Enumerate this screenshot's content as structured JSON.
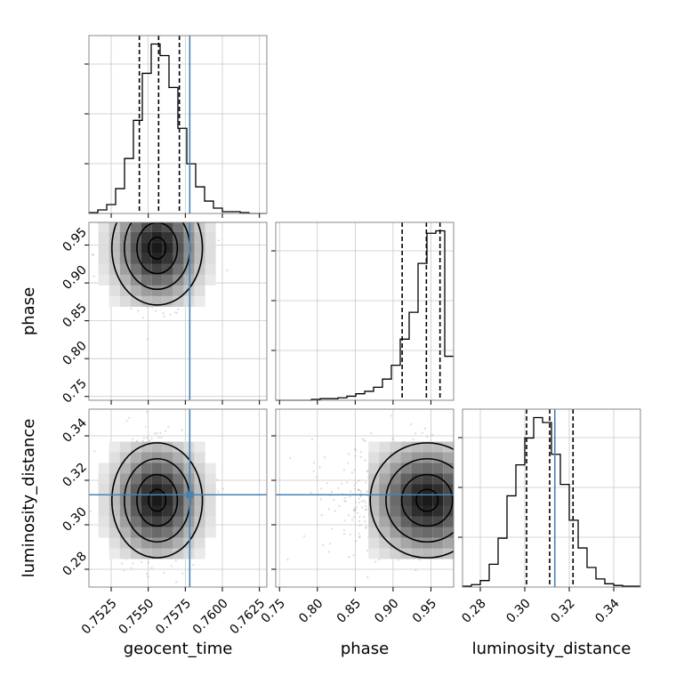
{
  "chart_data": {
    "type": "corner",
    "parameters": [
      "geocent_time",
      "phase",
      "luminosity_distance"
    ],
    "axis_labels": {
      "x": [
        "geocent_time",
        "phase",
        "luminosity_distance"
      ],
      "y": [
        "",
        "phase",
        "luminosity_distance"
      ]
    },
    "ranges": {
      "geocent_time": [
        0.751,
        0.763
      ],
      "phase": [
        0.745,
        0.98
      ],
      "luminosity_distance": [
        0.272,
        0.352
      ]
    },
    "ticks": {
      "geocent_time": [
        0.7525,
        0.755,
        0.7575,
        0.76,
        0.7625
      ],
      "phase": [
        0.75,
        0.8,
        0.85,
        0.9,
        0.95
      ],
      "luminosity_distance": [
        0.28,
        0.3,
        0.32,
        0.34
      ]
    },
    "tick_labels": {
      "geocent_time": [
        "0.7525",
        "0.7550",
        "0.7575",
        "0.7600",
        "0.7625"
      ],
      "phase": [
        "0.75",
        "0.80",
        "0.85",
        "0.90",
        "0.95"
      ],
      "luminosity_distance": [
        "0.28",
        "0.30",
        "0.32",
        "0.34"
      ]
    },
    "truths": {
      "geocent_time": 0.7578,
      "phase": null,
      "luminosity_distance": 0.3135
    },
    "quantiles": {
      "geocent_time": [
        0.7544,
        0.7557,
        0.7571
      ],
      "phase": [
        0.912,
        0.944,
        0.962
      ],
      "luminosity_distance": [
        0.3008,
        0.3112,
        0.3217
      ]
    },
    "histograms": {
      "geocent_time": {
        "edges": [
          0.751,
          0.7516,
          0.7522,
          0.7528,
          0.7534,
          0.754,
          0.7546,
          0.7552,
          0.7558,
          0.7564,
          0.757,
          0.7576,
          0.7582,
          0.7588,
          0.7594,
          0.76,
          0.7606,
          0.7612,
          0.7618,
          0.7624,
          0.763
        ],
        "counts": [
          1,
          4,
          10,
          28,
          62,
          105,
          158,
          191,
          178,
          142,
          96,
          56,
          30,
          14,
          6,
          2,
          2,
          1,
          0,
          0
        ]
      },
      "phase": {
        "edges": [
          0.745,
          0.75675,
          0.7685,
          0.78025,
          0.792,
          0.80375,
          0.8155,
          0.82725,
          0.839,
          0.85075,
          0.8625,
          0.87425,
          0.886,
          0.89775,
          0.9095,
          0.92125,
          0.933,
          0.94475,
          0.9565,
          0.96825,
          0.98
        ],
        "counts": [
          0,
          0,
          0,
          0,
          1,
          2,
          2,
          3,
          5,
          8,
          11,
          16,
          26,
          43,
          75,
          108,
          168,
          205,
          208,
          54
        ]
      },
      "luminosity_distance": {
        "edges": [
          0.272,
          0.276,
          0.28,
          0.284,
          0.288,
          0.292,
          0.296,
          0.3,
          0.304,
          0.308,
          0.312,
          0.316,
          0.32,
          0.324,
          0.328,
          0.332,
          0.336,
          0.34,
          0.344,
          0.348,
          0.352
        ],
        "counts": [
          1,
          3,
          8,
          28,
          60,
          112,
          150,
          183,
          208,
          202,
          163,
          126,
          82,
          48,
          24,
          10,
          4,
          2,
          1,
          1
        ]
      }
    },
    "density_panels": [
      {
        "x": "geocent_time",
        "y": "phase",
        "center": [
          0.7556,
          0.946
        ],
        "spread": [
          0.0013,
          0.032
        ]
      },
      {
        "x": "geocent_time",
        "y": "luminosity_distance",
        "center": [
          0.7556,
          0.311
        ],
        "spread": [
          0.0013,
          0.011
        ]
      },
      {
        "x": "phase",
        "y": "luminosity_distance",
        "center": [
          0.945,
          0.311
        ],
        "spread": [
          0.032,
          0.011
        ]
      }
    ],
    "colors": {
      "truth": "#4682b4",
      "hist": "#000000",
      "grid": "#c8c8c8"
    },
    "grid": true
  }
}
